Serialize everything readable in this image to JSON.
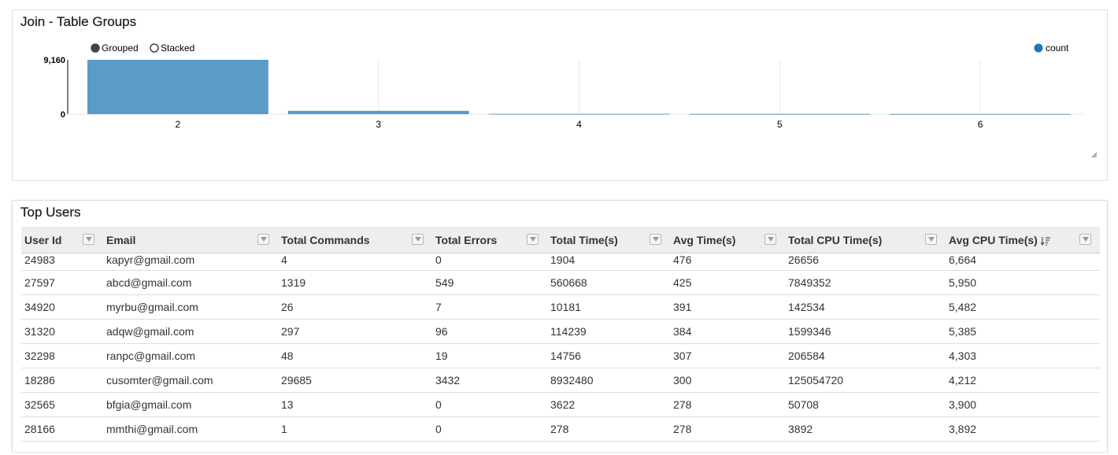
{
  "chart_panel": {
    "title": "Join - Table Groups",
    "controls": {
      "grouped_label": "Grouped",
      "stacked_label": "Stacked",
      "selected": "Grouped"
    },
    "legend_label": "count"
  },
  "chart_data": {
    "type": "bar",
    "categories": [
      "2",
      "3",
      "4",
      "5",
      "6"
    ],
    "series": [
      {
        "name": "count",
        "values": [
          9160,
          560,
          60,
          40,
          30
        ]
      }
    ],
    "ylim": [
      0,
      9160
    ],
    "yticks": [
      "0",
      "9,160"
    ],
    "legend": "top-right",
    "color": "#5a9bc8",
    "legend_color": "#1f77b4"
  },
  "table_panel": {
    "title": "Top Users",
    "columns": [
      "User Id",
      "Email",
      "Total Commands",
      "Total Errors",
      "Total Time(s)",
      "Avg Time(s)",
      "Total CPU Time(s)",
      "Avg CPU Time(s)"
    ],
    "sorted_column": "Avg CPU Time(s)",
    "rows": [
      [
        "24983",
        "kapyr@gmail.com",
        "4",
        "0",
        "1904",
        "476",
        "26656",
        "6,664"
      ],
      [
        "27597",
        "abcd@gmail.com",
        "1319",
        "549",
        "560668",
        "425",
        "7849352",
        "5,950"
      ],
      [
        "34920",
        "myrbu@gmail.com",
        "26",
        "7",
        "10181",
        "391",
        "142534",
        "5,482"
      ],
      [
        "31320",
        "adqw@gmail.com",
        "297",
        "96",
        "114239",
        "384",
        "1599346",
        "5,385"
      ],
      [
        "32298",
        "ranpc@gmail.com",
        "48",
        "19",
        "14756",
        "307",
        "206584",
        "4,303"
      ],
      [
        "18286",
        "cusomter@gmail.com",
        "29685",
        "3432",
        "8932480",
        "300",
        "125054720",
        "4,212"
      ],
      [
        "32565",
        "bfgia@gmail.com",
        "13",
        "0",
        "3622",
        "278",
        "50708",
        "3,900"
      ],
      [
        "28166",
        "mmthi@gmail.com",
        "1",
        "0",
        "278",
        "278",
        "3892",
        "3,892"
      ]
    ]
  }
}
